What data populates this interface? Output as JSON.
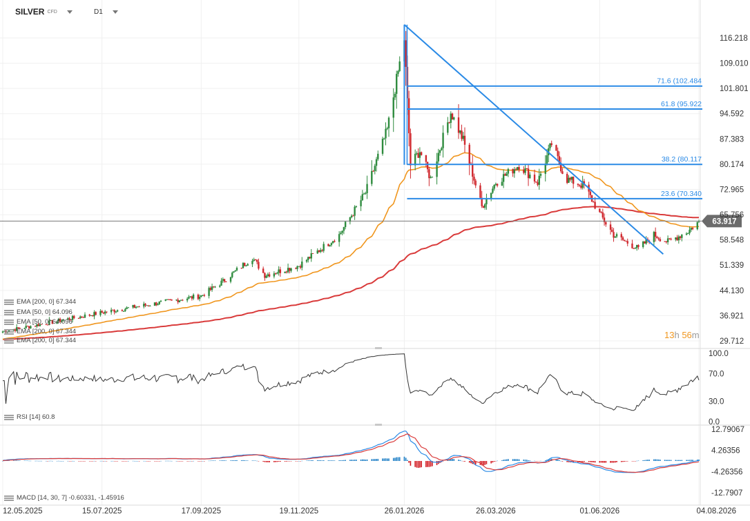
{
  "header": {
    "symbol": "SILVER",
    "symbol_tag": "CFD",
    "timeframe": "D1"
  },
  "timer": {
    "hours": "13",
    "h": "h",
    "minutes": "56",
    "m": "m"
  },
  "price_axis": {
    "labels": [
      "116.218",
      "109.010",
      "101.801",
      "94.592",
      "87.383",
      "80.174",
      "72.965",
      "65.756",
      "58.548",
      "51.339",
      "44.130",
      "36.921",
      "29.712"
    ]
  },
  "rsi_axis": {
    "labels": [
      "100.0",
      "70.0",
      "30.0",
      "0.0"
    ]
  },
  "macd_axis": {
    "labels": [
      "12.79067",
      "4.26356",
      "-4.26356",
      "-12.7907"
    ]
  },
  "date_axis": {
    "labels": [
      "12.05.2025",
      "15.07.2025",
      "17.09.2025",
      "19.11.2025",
      "26.01.2026",
      "26.03.2026",
      "01.06.2026",
      "04.08.2026"
    ]
  },
  "current_price": "63.917",
  "fib_levels": [
    "71.6 (102.484",
    "61.8 (95.922",
    "38.2 (80.117",
    "23.6 (70.340"
  ],
  "legends": {
    "main": [
      "EMA [200, 0] 67.344",
      "EMA [50, 0] 64.096",
      "EMA [50, 0] 64.096",
      "EMA [200, 0] 67.344",
      "EMA [200, 0] 67.344"
    ],
    "rsi": "RSI [14] 60.8",
    "macd": "MACD [14, 30, 7] -0.60331, -1.45916"
  },
  "colors": {
    "up": "#2e8b3e",
    "down": "#d0282e",
    "ema50": "#f0961e",
    "ema200": "#d93a3a",
    "fib": "#2a8ae6",
    "rsi": "#333333",
    "macd": "#2a8ae6",
    "signal": "#d93a3a"
  },
  "chart_data": {
    "type": "candlestick",
    "instrument": "SILVER",
    "timeframe": "D1",
    "y_range": [
      29.712,
      120
    ],
    "anchors": [
      [
        "12.05.2025",
        32.4
      ],
      [
        "15.07.2025",
        37.8
      ],
      [
        "17.09.2025",
        42.6
      ],
      [
        "01.10.2025",
        46.7
      ],
      [
        "20.10.2025",
        53.5
      ],
      [
        "28.10.2025",
        48.5
      ],
      [
        "19.11.2025",
        51.2
      ],
      [
        "15.12.2025",
        60
      ],
      [
        "01.01.2026",
        72
      ],
      [
        "15.01.2026",
        90
      ],
      [
        "26.01.2026",
        116
      ],
      [
        "30.01.2026",
        80
      ],
      [
        "05.02.2026",
        84
      ],
      [
        "12.02.2026",
        76
      ],
      [
        "25.02.2026",
        95
      ],
      [
        "05.03.2026",
        87
      ],
      [
        "17.03.2026",
        68
      ],
      [
        "26.03.2026",
        75
      ],
      [
        "10.04.2026",
        80
      ],
      [
        "22.04.2026",
        75
      ],
      [
        "01.05.2026",
        86
      ],
      [
        "10.05.2026",
        76
      ],
      [
        "22.05.2026",
        74
      ],
      [
        "01.06.2026",
        66
      ],
      [
        "10.06.2026",
        60
      ],
      [
        "26.06.2026",
        56
      ],
      [
        "06.07.2026",
        60
      ],
      [
        "15.07.2026",
        58
      ],
      [
        "28.07.2026",
        61
      ],
      [
        "04.08.2026",
        63.917
      ]
    ],
    "ema50": {
      "name": "EMA [50, 0]",
      "last": 64.096
    },
    "ema200": {
      "name": "EMA [200, 0]",
      "last": 67.344
    },
    "fibonacci": [
      {
        "label": "71.6",
        "value": 102.484
      },
      {
        "label": "61.8",
        "value": 95.922
      },
      {
        "label": "38.2",
        "value": 80.117
      },
      {
        "label": "23.6",
        "value": 70.34
      }
    ],
    "trendlines": [
      {
        "from": [
          "26.01.2026",
          120
        ],
        "to": [
          "12.07.2026",
          54.5
        ]
      },
      {
        "from": [
          "26.01.2026",
          120
        ],
        "to": [
          "26.01.2026",
          80
        ]
      }
    ],
    "rsi": {
      "name": "RSI [14]",
      "last": 60.8,
      "y_range": [
        0,
        100
      ]
    },
    "macd": {
      "name": "MACD [14, 30, 7]",
      "macd": -0.60331,
      "signal": -1.45916,
      "y_range": [
        -12.7907,
        12.79067
      ]
    }
  }
}
